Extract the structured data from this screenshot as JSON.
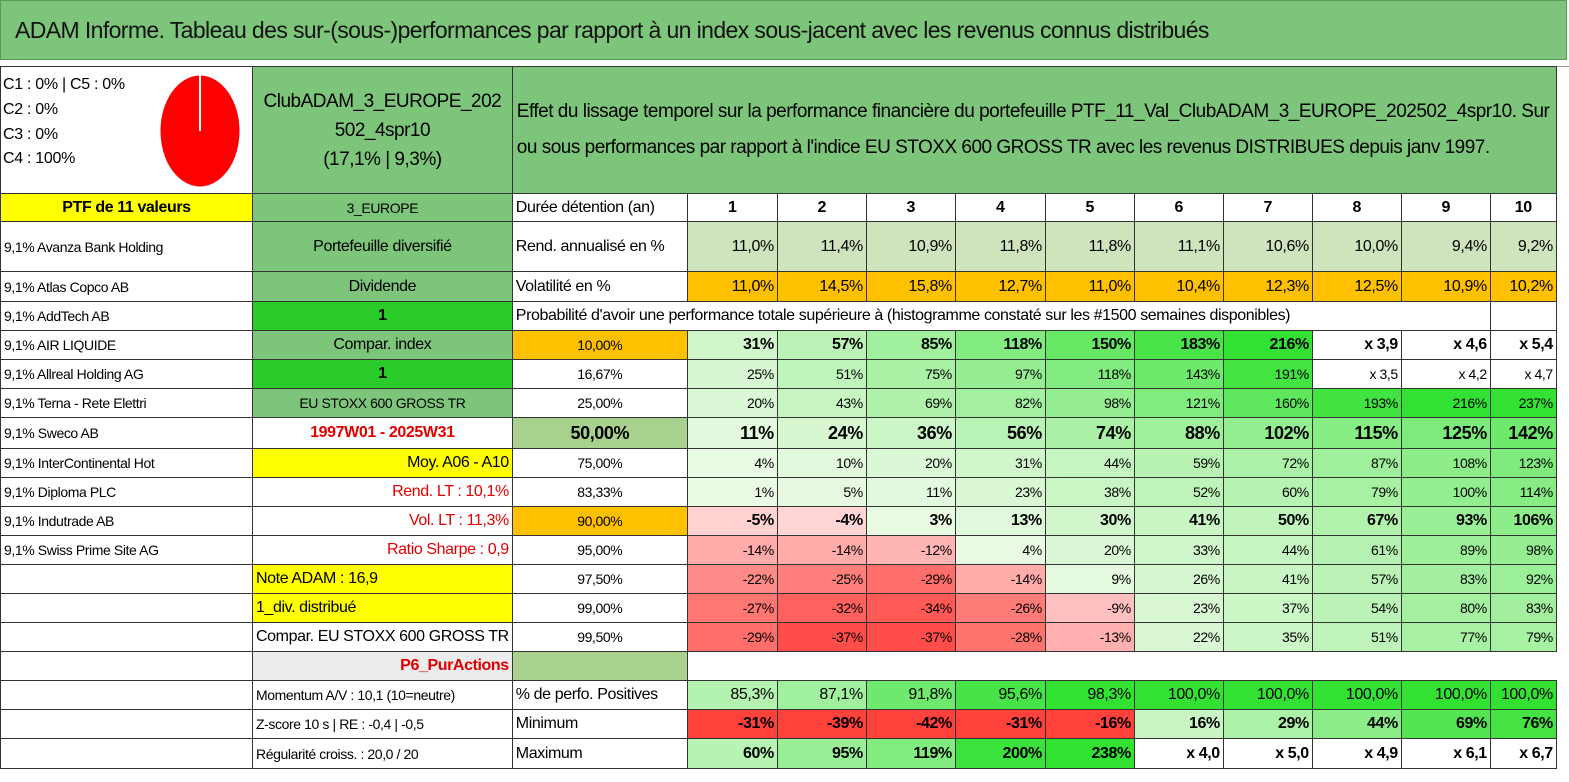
{
  "title": "ADAM Informe. Tableau des sur-(sous-)performances par rapport à un index sous-jacent avec les revenus connus distribués",
  "composition": {
    "line1": "C1 : 0% | C5 : 0%",
    "line2": "C2 : 0%",
    "line3": "C3 : 0%",
    "line4": "C4 : 100%",
    "pie_color": "#ff0000",
    "C4_share": 100
  },
  "fund": {
    "name_line1": "ClubADAM_3_EUROPE_202",
    "name_line2": "502_4spr10",
    "perf": "(17,1% | 9,3%)"
  },
  "description": "Effet du lissage temporel sur la performance financière du portefeuille PTF_11_Val_ClubADAM_3_EUROPE_202502_4spr10. Sur ou sous performances par rapport à l'indice EU STOXX 600 GROSS TR avec les revenus DISTRIBUES depuis janv 1997.",
  "ptf_label": "PTF de 11 valeurs",
  "region": "3_EUROPE",
  "duree_label": "Durée détention (an)",
  "years": [
    "1",
    "2",
    "3",
    "4",
    "5",
    "6",
    "7",
    "8",
    "9",
    "10"
  ],
  "holdings": [
    "9,1% Avanza Bank Holding",
    "9,1% Atlas Copco AB",
    "9,1% AddTech AB",
    "9,1% AIR LIQUIDE",
    "9,1% Allreal Holding AG",
    "9,1% Terna - Rete Elettri",
    "9,1% Sweco AB",
    "9,1% InterContinental Hot",
    "9,1% Diploma PLC",
    "9,1% Indutrade AB",
    "9,1% Swiss Prime Site AG"
  ],
  "side": {
    "portefeuille": "Portefeuille diversifié",
    "dividende": "Dividende",
    "div_val": "1",
    "compar": "Compar. index",
    "compar_val": "1",
    "index": "EU STOXX 600 GROSS TR",
    "period": "1997W01 - 2025W31",
    "moy": "Moy. A06 - A10",
    "rend": "Rend. LT : 10,1%",
    "vol": "Vol. LT : 11,3%",
    "sharpe": "Ratio Sharpe : 0,9",
    "note": "Note ADAM : 16,9",
    "div_distrib": "1_div. distribué",
    "compar_index": "Compar. EU STOXX 600 GROSS TR",
    "p6": "P6_PurActions",
    "momentum": "Momentum A/V : 10,1 (10=neutre)",
    "zscore": "Z-score 10 s | RE : -0,4 | -0,5",
    "regularite": "Régularité croiss. : 20,0 / 20"
  },
  "rend_label": "Rend. annualisé en %",
  "rend": [
    "11,0%",
    "11,4%",
    "10,9%",
    "11,8%",
    "11,8%",
    "11,1%",
    "10,6%",
    "10,0%",
    "9,4%",
    "9,2%"
  ],
  "vol_label": "Volatilité en %",
  "vol": [
    "11,0%",
    "14,5%",
    "15,8%",
    "12,7%",
    "11,0%",
    "10,4%",
    "12,3%",
    "12,5%",
    "10,9%",
    "10,2%"
  ],
  "prob_label": "Probabilité d'avoir une performance totale supérieure à (histogramme constaté sur les #1500 semaines disponibles)",
  "prob_rows": [
    {
      "p": "10,00%",
      "v": [
        "31%",
        "57%",
        "85%",
        "118%",
        "150%",
        "183%",
        "216%",
        "x 3,9",
        "x 4,6",
        "x 5,4"
      ]
    },
    {
      "p": "16,67%",
      "v": [
        "25%",
        "51%",
        "75%",
        "97%",
        "118%",
        "143%",
        "191%",
        "x 3,5",
        "x 4,2",
        "x 4,7"
      ]
    },
    {
      "p": "25,00%",
      "v": [
        "20%",
        "43%",
        "69%",
        "82%",
        "98%",
        "121%",
        "160%",
        "193%",
        "216%",
        "237%"
      ]
    },
    {
      "p": "50,00%",
      "v": [
        "11%",
        "24%",
        "36%",
        "56%",
        "74%",
        "88%",
        "102%",
        "115%",
        "125%",
        "142%"
      ]
    },
    {
      "p": "75,00%",
      "v": [
        "4%",
        "10%",
        "20%",
        "31%",
        "44%",
        "59%",
        "72%",
        "87%",
        "108%",
        "123%"
      ]
    },
    {
      "p": "83,33%",
      "v": [
        "1%",
        "5%",
        "11%",
        "23%",
        "38%",
        "52%",
        "60%",
        "79%",
        "100%",
        "114%"
      ]
    },
    {
      "p": "90,00%",
      "v": [
        "-5%",
        "-4%",
        "3%",
        "13%",
        "30%",
        "41%",
        "50%",
        "67%",
        "93%",
        "106%"
      ]
    },
    {
      "p": "95,00%",
      "v": [
        "-14%",
        "-14%",
        "-12%",
        "4%",
        "20%",
        "33%",
        "44%",
        "61%",
        "89%",
        "98%"
      ]
    },
    {
      "p": "97,50%",
      "v": [
        "-22%",
        "-25%",
        "-29%",
        "-14%",
        "9%",
        "26%",
        "41%",
        "57%",
        "83%",
        "92%"
      ]
    },
    {
      "p": "99,00%",
      "v": [
        "-27%",
        "-32%",
        "-34%",
        "-26%",
        "-9%",
        "23%",
        "37%",
        "54%",
        "80%",
        "83%"
      ]
    },
    {
      "p": "99,50%",
      "v": [
        "-29%",
        "-37%",
        "-37%",
        "-28%",
        "-13%",
        "22%",
        "35%",
        "51%",
        "77%",
        "79%"
      ]
    }
  ],
  "pos_label": "% de perfo. Positives",
  "pos": [
    "85,3%",
    "87,1%",
    "91,8%",
    "95,6%",
    "98,3%",
    "100,0%",
    "100,0%",
    "100,0%",
    "100,0%",
    "100,0%"
  ],
  "min_label": "Minimum",
  "min": [
    "-31%",
    "-39%",
    "-42%",
    "-31%",
    "-16%",
    "16%",
    "29%",
    "44%",
    "69%",
    "76%"
  ],
  "max_label": "Maximum",
  "max": [
    "60%",
    "95%",
    "119%",
    "200%",
    "238%",
    "x 4,0",
    "x 5,0",
    "x 4,9",
    "x 6,1",
    "x 6,7"
  ]
}
